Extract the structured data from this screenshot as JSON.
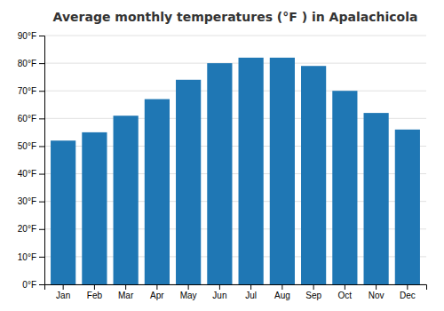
{
  "chart_data": {
    "type": "bar",
    "title": "Average monthly temperatures (°F ) in Apalachicola",
    "categories": [
      "Jan",
      "Feb",
      "Mar",
      "Apr",
      "May",
      "Jun",
      "Jul",
      "Aug",
      "Sep",
      "Oct",
      "Nov",
      "Dec"
    ],
    "values": [
      52,
      55,
      61,
      67,
      74,
      80,
      82,
      82,
      79,
      70,
      62,
      56
    ],
    "ylim": [
      0,
      90
    ],
    "yticks": [
      {
        "value": 0,
        "label": "0°F"
      },
      {
        "value": 10,
        "label": "10°F"
      },
      {
        "value": 20,
        "label": "20°F"
      },
      {
        "value": 30,
        "label": "30°F"
      },
      {
        "value": 40,
        "label": "40°F"
      },
      {
        "value": 50,
        "label": "50°F"
      },
      {
        "value": 60,
        "label": "60°F"
      },
      {
        "value": 70,
        "label": "70°F"
      },
      {
        "value": 80,
        "label": "80°F"
      },
      {
        "value": 90,
        "label": "90°F"
      }
    ],
    "grid": true
  }
}
